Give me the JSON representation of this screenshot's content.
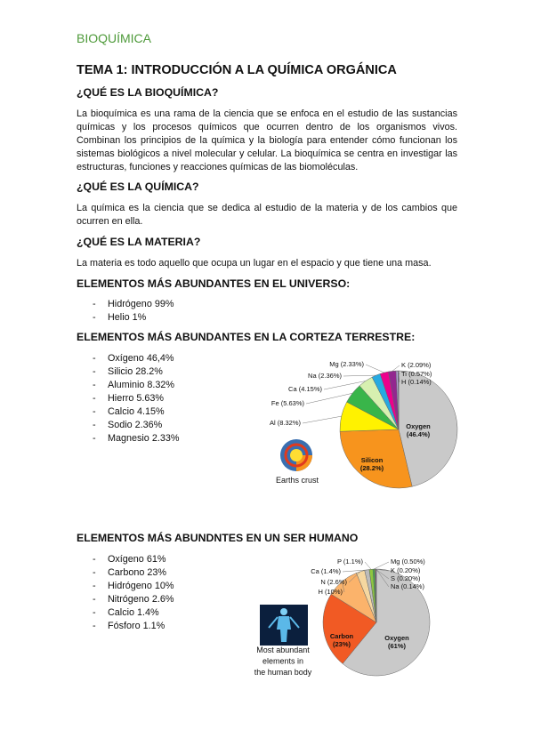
{
  "header": "BIOQUÍMICA",
  "title": "TEMA 1: INTRODUCCIÓN A LA QUÍMICA ORGÁNICA",
  "sections": [
    {
      "heading": "¿QUÉ ES LA BIOQUÍMICA?",
      "paragraph": "La bioquímica es una rama de la ciencia que se enfoca en el estudio de las sustancias químicas y los procesos químicos que ocurren dentro de los organismos vivos. Combinan los principios de la química y la biología para entender cómo funcionan los sistemas biológicos a nivel molecular y celular. La bioquímica se centra en investigar las estructuras, funciones y reacciones químicas de las biomoléculas."
    },
    {
      "heading": "¿QUÉ ES LA QUÍMICA?",
      "paragraph": "La química es la ciencia que se dedica al estudio de la materia y de los cambios que ocurren en ella."
    },
    {
      "heading": "¿QUÉ ES LA MATERIA?",
      "paragraph": "La materia es todo aquello que ocupa un lugar en el espacio y que tiene una masa."
    },
    {
      "heading": "ELEMENTOS MÁS ABUNDANTES EN EL UNIVERSO:",
      "items": [
        "Hidrógeno 99%",
        "Helio 1%"
      ]
    },
    {
      "heading": "ELEMENTOS MÁS ABUNDANTES EN LA CORTEZA TERRESTRE:",
      "items": [
        "Oxígeno 46,4%",
        "Silicio 28.2%",
        "Aluminio 8.32%",
        "Hierro 5.63%",
        "Calcio 4.15%",
        "Sodio 2.36%",
        "Magnesio 2.33%"
      ],
      "figure": {
        "type": "pie",
        "caption": [
          "Earths crust"
        ],
        "categories": [
          "Oxygen",
          "Silicon",
          "Al",
          "Fe",
          "Ca",
          "Na",
          "Mg",
          "K",
          "Ti",
          "H"
        ],
        "values": [
          46.4,
          28.2,
          8.32,
          5.63,
          4.15,
          2.36,
          2.33,
          2.09,
          0.57,
          0.14
        ],
        "value_labels": [
          "(46.4%)",
          "(28.2%)",
          "(8.32%)",
          "(5.63%)",
          "(4.15%)",
          "(2.36%)",
          "(2.33%)",
          "(2.09%)",
          "(0.57%)",
          "(0.14%)"
        ],
        "colors": [
          "#c9c9c9",
          "#f7941d",
          "#fff200",
          "#39b54a",
          "#d7f0b0",
          "#27aae1",
          "#ec008c",
          "#92278f",
          "#b5a0d8",
          "#2e3192"
        ]
      }
    },
    {
      "heading": "ELEMENTOS MÁS ABUNDNTES EN UN SER HUMANO",
      "items": [
        "Oxígeno 61%",
        "Carbono 23%",
        "Hidrógeno 10%",
        "Nitrógeno 2.6%",
        "Calcio 1.4%",
        "Fósforo 1.1%"
      ],
      "figure": {
        "type": "pie",
        "caption": [
          "Most abundant",
          "elements in",
          "the human body"
        ],
        "categories": [
          "Oxygen",
          "Carbon",
          "H",
          "N",
          "Ca",
          "P",
          "Mg",
          "K",
          "S",
          "Na"
        ],
        "values": [
          61,
          23,
          10,
          2.6,
          1.4,
          1.1,
          0.5,
          0.2,
          0.2,
          0.14
        ],
        "value_labels": [
          "(61%)",
          "(23%)",
          "(10%)",
          "(2.6%)",
          "(1.4%)",
          "(1.1%)",
          "(0.50%)",
          "(0.20%)",
          "(0.20%)",
          "(0.14%)"
        ],
        "colors": [
          "#c9c9c9",
          "#f15a24",
          "#fbb36b",
          "#f5d7a0",
          "#bbbbbb",
          "#8dc63f",
          "#39b54a",
          "#f7e017",
          "#ec008c",
          "#27aae1"
        ]
      }
    }
  ]
}
